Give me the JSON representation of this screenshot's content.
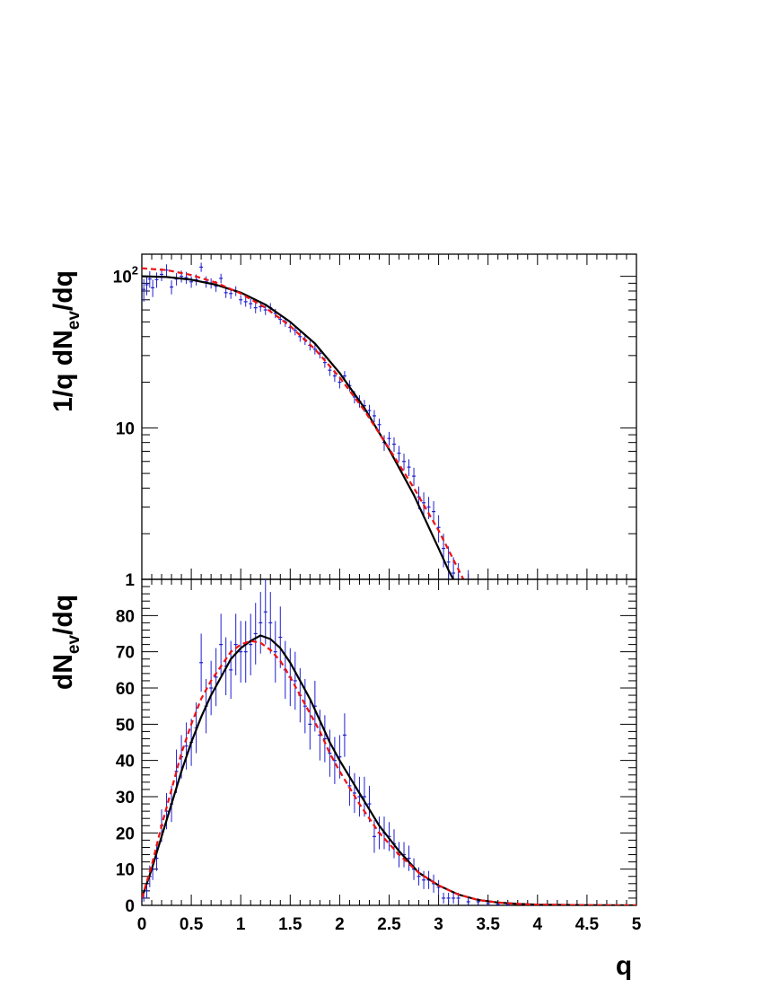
{
  "chart_data": [
    {
      "type": "scatter",
      "panel": "top",
      "ylabel": {
        "pre": "1/q dN",
        "sub": "ev",
        "post": "/dq"
      },
      "xlim": [
        0,
        5
      ],
      "ylim": [
        1,
        140
      ],
      "yscale": "log",
      "grid": false,
      "ytick_labels": [
        {
          "value": 1,
          "label": "1"
        },
        {
          "value": 10,
          "label": "10"
        },
        {
          "value": 100,
          "base": "10",
          "exp": "2"
        }
      ],
      "series": [
        {
          "style": "points-with-error-bars",
          "color": "#1f1fd0",
          "x": [
            0.02,
            0.05,
            0.08,
            0.11,
            0.15,
            0.2,
            0.25,
            0.3,
            0.35,
            0.4,
            0.45,
            0.5,
            0.55,
            0.6,
            0.65,
            0.7,
            0.75,
            0.8,
            0.85,
            0.9,
            0.95,
            1.0,
            1.05,
            1.1,
            1.15,
            1.2,
            1.25,
            1.3,
            1.35,
            1.4,
            1.45,
            1.5,
            1.55,
            1.6,
            1.65,
            1.7,
            1.75,
            1.8,
            1.85,
            1.9,
            1.95,
            2.0,
            2.05,
            2.1,
            2.15,
            2.2,
            2.25,
            2.3,
            2.35,
            2.4,
            2.45,
            2.5,
            2.55,
            2.6,
            2.65,
            2.7,
            2.75,
            2.8,
            2.85,
            2.9,
            2.95,
            3.0,
            3.05,
            3.1,
            3.15,
            3.2,
            3.3
          ],
          "y": [
            82,
            88,
            96,
            84,
            95,
            103,
            110,
            85,
            96,
            100,
            98,
            92,
            95,
            115,
            92,
            90,
            86,
            97,
            78,
            77,
            80,
            70,
            68,
            66,
            62,
            63,
            60,
            62,
            57,
            52,
            50,
            46,
            44,
            40,
            38,
            35,
            33,
            31,
            27,
            24,
            22,
            20,
            22,
            19,
            16,
            15,
            14,
            13,
            12,
            10.5,
            8,
            8.5,
            7.8,
            6.8,
            6,
            5.5,
            4.8,
            3.5,
            3.2,
            3.0,
            2.8,
            2.2,
            1.6,
            1.3,
            1.1,
            1.0,
            0.9
          ],
          "err": [
            14,
            13,
            12,
            11,
            11,
            10,
            10,
            9,
            9,
            9,
            9,
            8,
            8,
            8,
            8,
            7,
            7,
            7,
            6,
            6,
            6,
            5,
            5,
            5,
            5,
            4.5,
            4.5,
            4.5,
            4,
            3.8,
            3.6,
            3.4,
            3.2,
            3,
            2.8,
            2.6,
            2.5,
            2.3,
            2.1,
            2,
            1.9,
            1.8,
            1.7,
            1.6,
            1.5,
            1.4,
            1.3,
            1.2,
            1.1,
            1.0,
            0.95,
            0.9,
            0.85,
            0.8,
            0.75,
            0.7,
            0.65,
            0.6,
            0.55,
            0.5,
            0.48,
            0.45,
            0.4,
            0.35,
            0.3,
            0.28,
            0.25
          ]
        },
        {
          "style": "solid-line",
          "color": "#000000",
          "x": [
            0,
            0.25,
            0.5,
            0.75,
            1.0,
            1.25,
            1.5,
            1.75,
            2.0,
            2.25,
            2.5,
            2.75,
            3.0,
            3.1,
            3.15
          ],
          "y": [
            100,
            99,
            95,
            88,
            78,
            65,
            50,
            36,
            23,
            13.5,
            7.2,
            3.6,
            1.6,
            1.15,
            1.0
          ]
        },
        {
          "style": "dashed-line",
          "color": "#ee1111",
          "x": [
            0,
            0.25,
            0.5,
            0.75,
            1.0,
            1.25,
            1.5,
            1.75,
            2.0,
            2.25,
            2.5,
            2.75,
            3.0,
            3.15,
            3.25
          ],
          "y": [
            113,
            110,
            102,
            91,
            77,
            62,
            47,
            33,
            21.5,
            13,
            7.3,
            4.0,
            2.1,
            1.35,
            1.0
          ]
        }
      ]
    },
    {
      "type": "scatter",
      "panel": "bottom",
      "ylabel": {
        "pre": "dN",
        "sub": "ev",
        "post": "/dq"
      },
      "xlabel": "q",
      "xlim": [
        0,
        5
      ],
      "ylim": [
        0,
        90
      ],
      "grid": false,
      "xticks": [
        0,
        0.5,
        1,
        1.5,
        2,
        2.5,
        3,
        3.5,
        4,
        4.5,
        5
      ],
      "xtick_labels": [
        "0",
        "0.5",
        "1",
        "1.5",
        "2",
        "2.5",
        "3",
        "3.5",
        "4",
        "4.5",
        "5"
      ],
      "yticks": [
        0,
        10,
        20,
        30,
        40,
        50,
        60,
        70,
        80
      ],
      "ytick_labels": [
        "0",
        "10",
        "20",
        "30",
        "40",
        "50",
        "60",
        "70",
        "80"
      ],
      "series": [
        {
          "style": "points-with-error-bars",
          "color": "#1f1fd0",
          "x": [
            0.02,
            0.05,
            0.08,
            0.11,
            0.15,
            0.2,
            0.25,
            0.3,
            0.35,
            0.4,
            0.45,
            0.5,
            0.55,
            0.6,
            0.65,
            0.7,
            0.75,
            0.8,
            0.85,
            0.9,
            0.95,
            1.0,
            1.05,
            1.1,
            1.15,
            1.2,
            1.25,
            1.3,
            1.35,
            1.4,
            1.45,
            1.5,
            1.55,
            1.6,
            1.65,
            1.7,
            1.75,
            1.8,
            1.85,
            1.9,
            1.95,
            2.0,
            2.05,
            2.1,
            2.15,
            2.2,
            2.25,
            2.3,
            2.35,
            2.4,
            2.45,
            2.5,
            2.55,
            2.6,
            2.65,
            2.7,
            2.75,
            2.8,
            2.85,
            2.9,
            2.95,
            3.0,
            3.05,
            3.1,
            3.15,
            3.2,
            3.3,
            3.4,
            3.5,
            3.6,
            3.7
          ],
          "y": [
            2,
            4,
            8,
            10,
            13,
            22,
            26,
            28,
            37,
            41,
            44,
            45,
            49,
            67,
            55,
            60,
            63,
            72,
            66,
            65,
            72,
            70,
            70,
            72,
            75,
            78,
            81,
            78,
            70,
            74,
            65,
            63,
            62,
            58,
            55,
            50,
            55,
            47,
            46,
            42,
            40,
            41,
            47,
            33,
            31,
            30,
            30,
            28,
            19,
            20,
            20,
            19,
            17,
            14,
            14,
            13,
            10,
            8,
            7,
            7,
            6,
            5,
            2,
            2,
            2,
            2,
            1,
            1,
            0.5,
            0.3,
            0.2
          ],
          "err": [
            1,
            2,
            3,
            3,
            3.5,
            4.5,
            5,
            5,
            6,
            6,
            6.5,
            6.5,
            7,
            8,
            7.5,
            7.5,
            8,
            8.5,
            8,
            8,
            8.5,
            8.5,
            8.5,
            8.5,
            8.5,
            8.5,
            9,
            8.5,
            8.5,
            8.5,
            8,
            8,
            8,
            7.5,
            7.5,
            7,
            7,
            7,
            6.5,
            6.5,
            6.5,
            6,
            6,
            5.5,
            5.5,
            5.5,
            5.5,
            5,
            4.5,
            4.5,
            4.5,
            4,
            4,
            3.5,
            3.5,
            3.5,
            3,
            2.5,
            2.5,
            2.5,
            2.5,
            2,
            1.5,
            1.5,
            1.5,
            1.5,
            1,
            1,
            0.8,
            0.6,
            0.4
          ]
        },
        {
          "style": "solid-line",
          "color": "#000000",
          "x": [
            0,
            0.1,
            0.2,
            0.3,
            0.4,
            0.5,
            0.6,
            0.7,
            0.8,
            0.9,
            1.0,
            1.1,
            1.2,
            1.3,
            1.4,
            1.5,
            1.6,
            1.7,
            1.8,
            1.9,
            2.0,
            2.2,
            2.4,
            2.6,
            2.8,
            3.0,
            3.2,
            3.4,
            3.6,
            3.8,
            4.0,
            4.5,
            5.0
          ],
          "y": [
            2,
            10,
            19,
            28,
            37,
            45,
            52,
            58,
            63,
            68,
            71,
            73,
            74.5,
            73.5,
            71,
            67,
            62,
            57,
            51,
            45,
            40,
            31,
            22,
            15,
            9,
            5.5,
            3,
            1.5,
            0.8,
            0.4,
            0.2,
            0.05,
            0
          ]
        },
        {
          "style": "dashed-line",
          "color": "#ee1111",
          "x": [
            0,
            0.1,
            0.2,
            0.3,
            0.4,
            0.5,
            0.6,
            0.7,
            0.8,
            0.9,
            1.0,
            1.1,
            1.2,
            1.3,
            1.4,
            1.5,
            1.6,
            1.7,
            1.8,
            1.9,
            2.0,
            2.2,
            2.4,
            2.6,
            2.8,
            3.0,
            3.2,
            3.4,
            3.6,
            3.8,
            4.0,
            4.5,
            5.0
          ],
          "y": [
            2,
            11,
            22,
            32,
            42,
            50,
            57,
            62,
            66,
            70,
            72,
            73,
            72.5,
            70.5,
            67.5,
            63,
            58,
            53,
            48,
            42,
            37,
            28,
            20,
            14,
            9,
            5.5,
            3,
            1.5,
            0.8,
            0.4,
            0.2,
            0.05,
            0
          ]
        }
      ]
    }
  ]
}
